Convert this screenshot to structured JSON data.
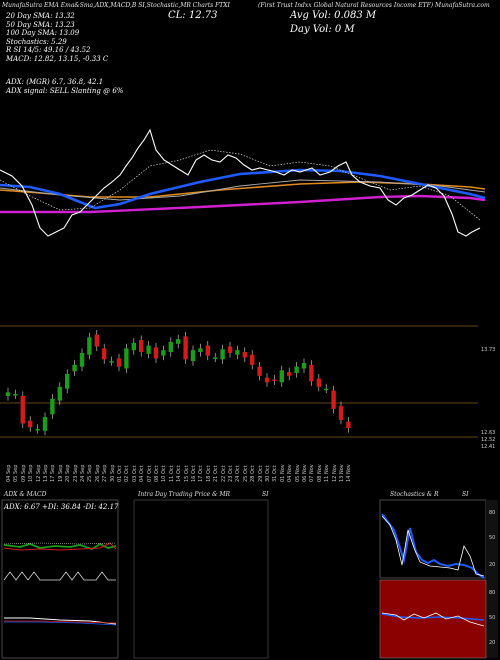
{
  "header": {
    "indicators_line": "MunafaSutra EMA Ema&Sma,ADX,MACD,B  SI,Stochastic,MR  Charts FTXI",
    "fund_title": "(First Trust Indxx Global Natural Resources Income  ETF) MunafaSutra.com",
    "close": "CL: 12.73",
    "avg_vol": "Avg Vol: 0.083 M",
    "day_vol": "Day Vol: 0   M"
  },
  "info_lines": [
    "20 Day  SMA: 13.32",
    "50 Day  SMA: 13.23",
    "100 Day  SMA: 13.09",
    "Stochastics: 5.29",
    "R              SI 14/5: 49.16  / 43.52",
    "MACD: 12.82,  13.15,  -0.33 C"
  ],
  "adx_lines": [
    "ADX:                        (MGR) 6.7,  36.8,  42.1",
    "ADX  signal: SELL  Slanting @ 6%"
  ],
  "price_tags": {
    "top": "13.73",
    "bottom_a": "12.63",
    "bottom_b": "12.52",
    "bottom_c": "12.41"
  },
  "dates": [
    "04 Sep",
    "05 Sep",
    "09 Sep",
    "10 Sep",
    "12 Sep",
    "13 Sep",
    "17 Sep",
    "19 Sep",
    "20 Sep",
    "23 Sep",
    "24 Sep",
    "25 Sep",
    "26 Sep",
    "27 Sep",
    "30 Sep",
    "01 Oct",
    "02 Oct",
    "03 Oct",
    "04 Oct",
    "07 Oct",
    "08 Oct",
    "10 Oct",
    "11 Oct",
    "14 Oct",
    "15 Oct",
    "16 Oct",
    "17 Oct",
    "18 Oct",
    "21 Oct",
    "22 Oct",
    "23 Oct",
    "24 Oct",
    "25 Oct",
    "28 Oct",
    "29 Oct",
    "30 Oct",
    "31 Oct",
    "01 Nov",
    "04 Nov",
    "05 Nov",
    "06 Nov",
    "07 Nov",
    "08 Nov",
    "11 Nov",
    "12 Nov",
    "13 Nov",
    "14 Nov"
  ],
  "panels": {
    "adx_title": "ADX  & MACD",
    "adx_readout": "ADX: 6.67  +DI: 36.84  -DI: 42.17",
    "intraday_title": "Intra Day Trading Price  & MR",
    "intraday_si": "SI",
    "stoch_title": "Stochastics & R",
    "stoch_si": "SI",
    "stoch_ticks": [
      "80",
      "50",
      "20"
    ],
    "rsi_ticks": [
      "80",
      "50",
      "20"
    ]
  },
  "colors": {
    "bull": "#1a9d1a",
    "bear": "#d41a1a",
    "sma_blue": "#1f5cff",
    "orange": "#e08a1e",
    "magenta": "#d020d0",
    "rsi_bg": "#8b0000"
  },
  "chart_data": {
    "type": "candlestick",
    "series": [
      {
        "name": "close",
        "values": [
          13.12,
          13.1,
          12.78,
          12.74,
          12.72,
          12.85,
          13.05,
          13.18,
          13.32,
          13.42,
          13.55,
          13.72,
          13.62,
          13.48,
          13.46,
          13.4,
          13.6,
          13.66,
          13.56,
          13.63,
          13.49,
          13.58,
          13.67,
          13.7,
          13.48,
          13.58,
          13.6,
          13.52,
          13.5,
          13.59,
          13.55,
          13.58,
          13.5,
          13.42,
          13.3,
          13.23,
          13.25,
          13.36,
          13.3,
          13.4,
          13.44,
          13.24,
          13.18,
          13.16,
          12.94,
          12.82,
          12.73
        ]
      }
    ]
  }
}
